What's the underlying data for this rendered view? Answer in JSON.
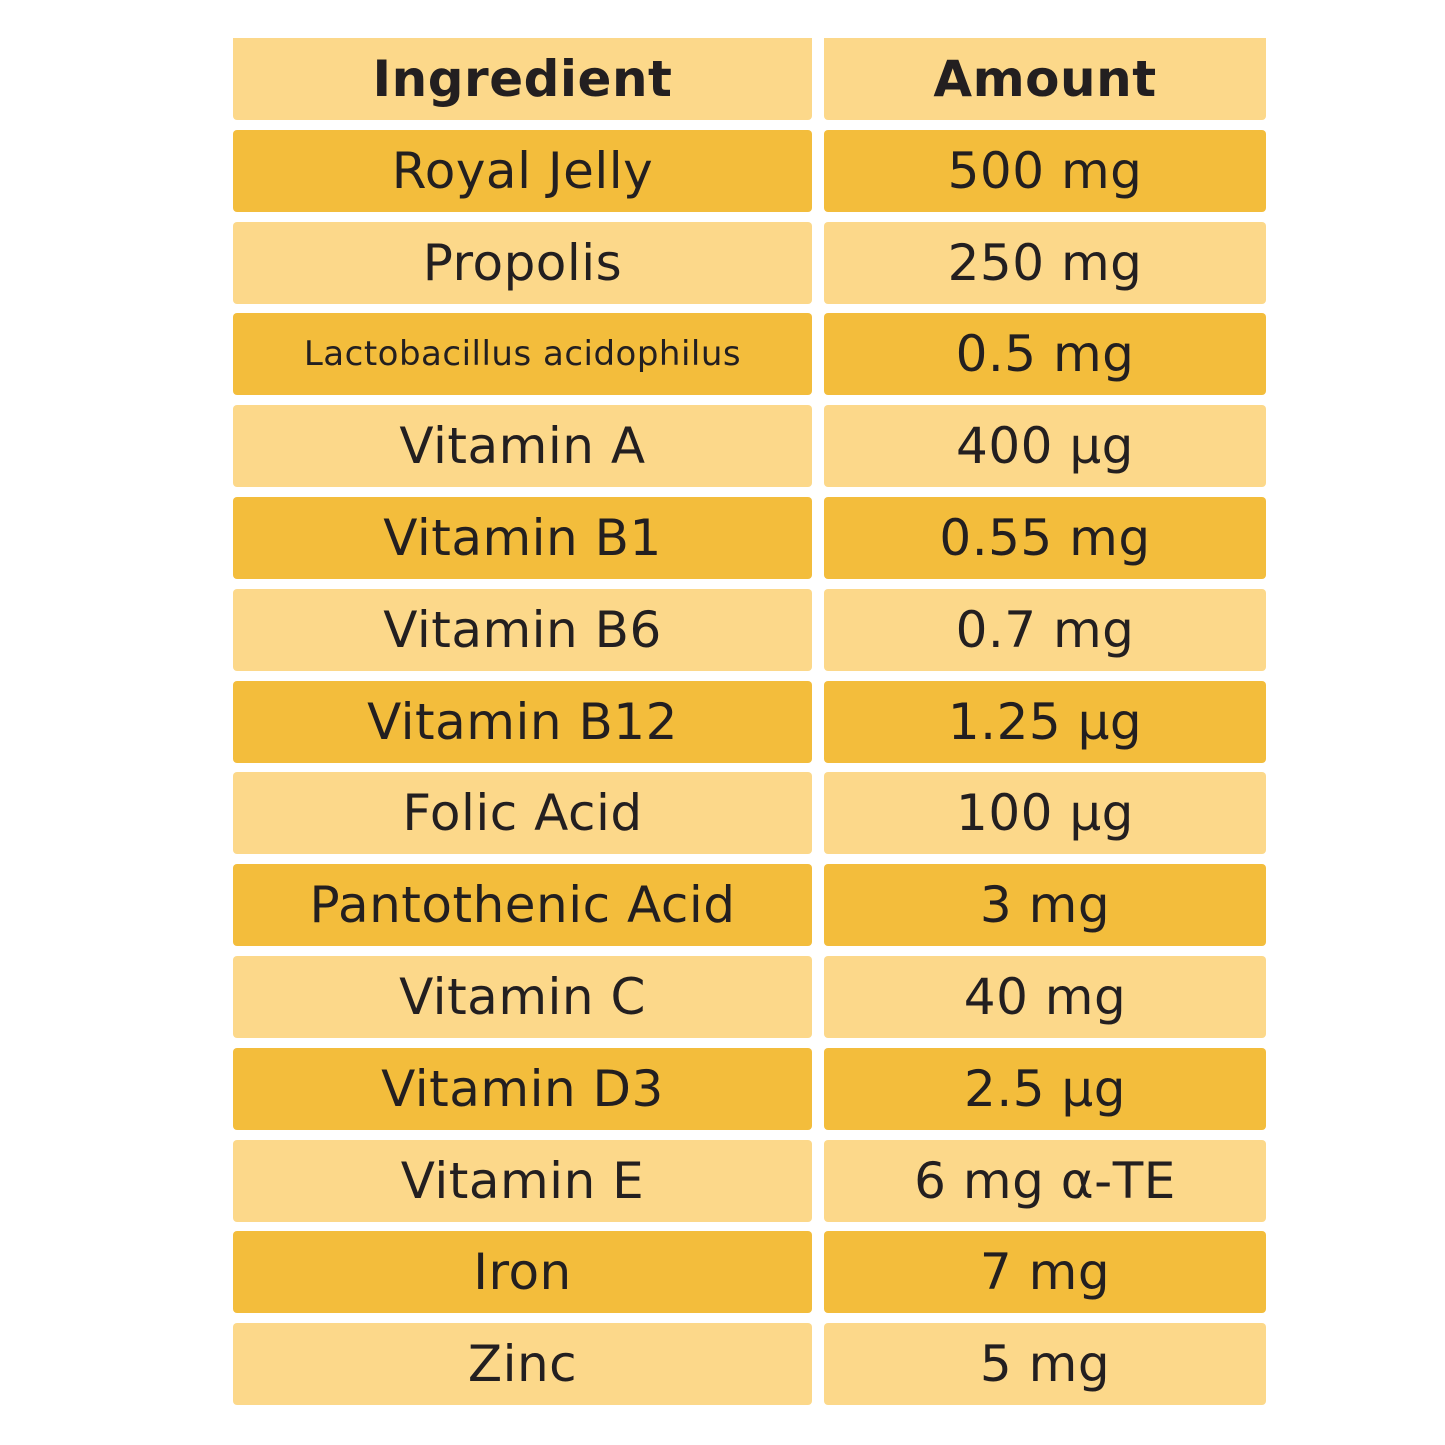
{
  "table": {
    "headers": {
      "ingredient": "Ingredient",
      "amount": "Amount"
    },
    "rows": [
      {
        "ingredient": "Royal Jelly",
        "amount": "500 mg"
      },
      {
        "ingredient": "Propolis",
        "amount": "250 mg"
      },
      {
        "ingredient": "Lactobacillus acidophilus",
        "amount": "0.5 mg"
      },
      {
        "ingredient": "Vitamin A",
        "amount": "400 μg"
      },
      {
        "ingredient": "Vitamin B1",
        "amount": "0.55 mg"
      },
      {
        "ingredient": "Vitamin B6",
        "amount": "0.7 mg"
      },
      {
        "ingredient": "Vitamin B12",
        "amount": "1.25 μg"
      },
      {
        "ingredient": "Folic Acid",
        "amount": "100 μg"
      },
      {
        "ingredient": "Pantothenic Acid",
        "amount": "3 mg"
      },
      {
        "ingredient": "Vitamin C",
        "amount": "40 mg"
      },
      {
        "ingredient": "Vitamin D3",
        "amount": "2.5 μg"
      },
      {
        "ingredient": "Vitamin E",
        "amount": "6 mg α-TE"
      },
      {
        "ingredient": "Iron",
        "amount": "7 mg"
      },
      {
        "ingredient": "Zinc",
        "amount": "5 mg"
      }
    ]
  },
  "colors": {
    "light_row": "#fcd88a",
    "dark_row": "#f3bd3c",
    "text": "#231f20"
  }
}
